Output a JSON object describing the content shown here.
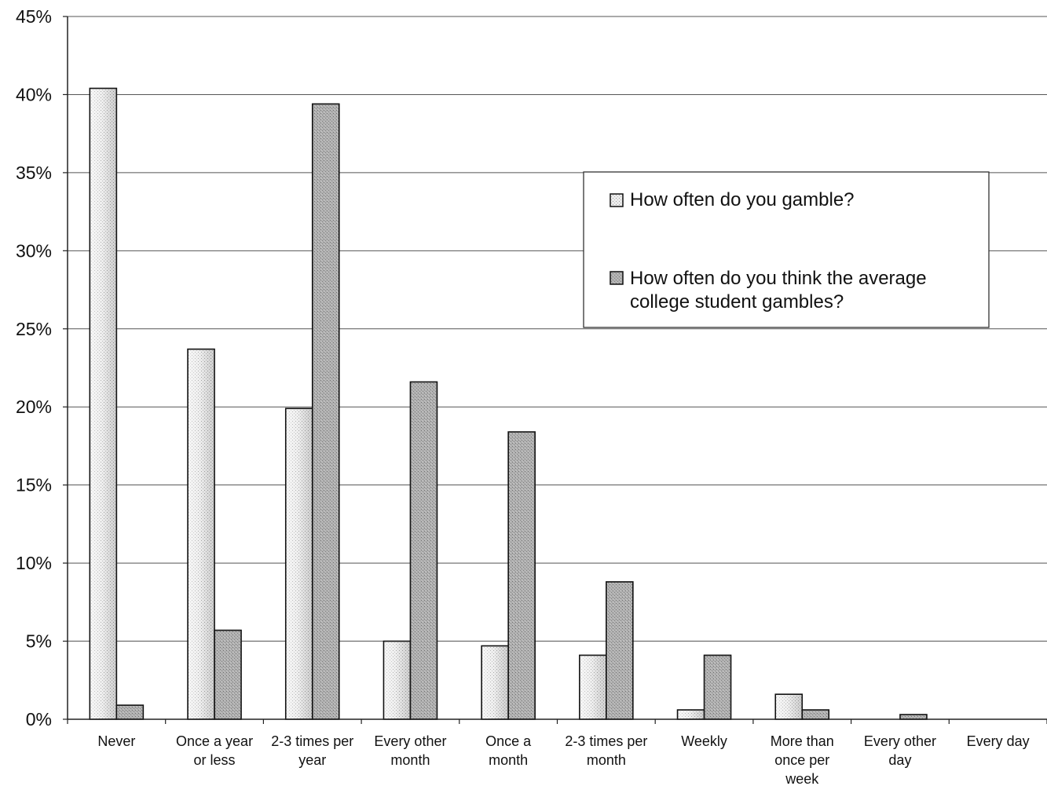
{
  "chart_data": {
    "type": "bar",
    "categories": [
      "Never",
      "Once a year or less",
      "2-3 times per year",
      "Every other month",
      "Once a month",
      "2-3 times per month",
      "Weekly",
      "More than once per week",
      "Every other day",
      "Every day"
    ],
    "category_lines": [
      [
        "Never"
      ],
      [
        "Once a year",
        "or less"
      ],
      [
        "2-3 times per",
        "year"
      ],
      [
        "Every other",
        "month"
      ],
      [
        "Once a",
        "month"
      ],
      [
        "2-3 times per",
        "month"
      ],
      [
        "Weekly"
      ],
      [
        "More than",
        "once per",
        "week"
      ],
      [
        "Every other",
        "day"
      ],
      [
        "Every day"
      ]
    ],
    "series": [
      {
        "name": "How often do you gamble?",
        "legend_lines": [
          "How often do you gamble?"
        ],
        "fill": "light-stipple",
        "values": [
          40.4,
          23.7,
          19.9,
          5.0,
          4.7,
          4.1,
          0.6,
          1.6,
          0.0,
          0.0
        ]
      },
      {
        "name": "How often do you think the average college student gambles?",
        "legend_lines": [
          "How often do you think the average",
          "college student gambles?"
        ],
        "fill": "dark-stipple",
        "values": [
          0.9,
          5.7,
          39.4,
          21.6,
          18.4,
          8.8,
          4.1,
          0.6,
          0.3,
          0.0
        ]
      }
    ],
    "ylim": [
      0,
      45
    ],
    "yticks": [
      0,
      5,
      10,
      15,
      20,
      25,
      30,
      35,
      40,
      45
    ],
    "ytick_labels": [
      "0%",
      "5%",
      "10%",
      "15%",
      "20%",
      "25%",
      "30%",
      "35%",
      "40%",
      "45%"
    ],
    "grid": true,
    "legend_position": "upper-right",
    "colors": {
      "axis": "#222222",
      "grid": "#555555",
      "light_bar": "#e4e4e4",
      "dark_bar": "#a6a6a6",
      "edge": "#111111"
    }
  }
}
